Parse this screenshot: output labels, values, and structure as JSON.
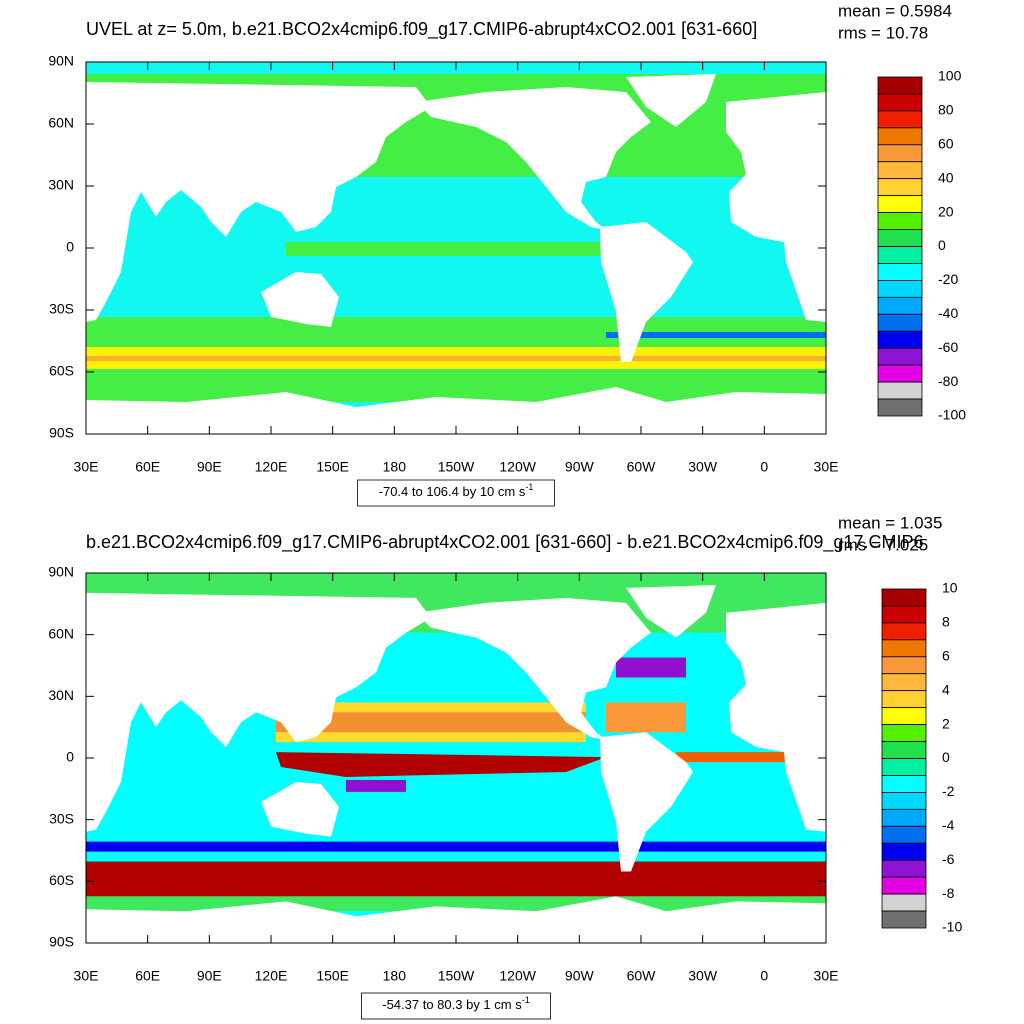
{
  "panels": [
    {
      "title": "UVEL at z=   5.0m, b.e21.BCO2x4cmip6.f09_g17.CMIP6-abrupt4xCO2.001 [631-660]",
      "stats": [
        "mean = 0.5984",
        "rms = 10.78"
      ],
      "lat_labels": [
        "90N",
        "60N",
        "30N",
        "0",
        "30S",
        "60S",
        "90S"
      ],
      "lon_labels": [
        "30E",
        "60E",
        "90E",
        "120E",
        "150E",
        "180",
        "150W",
        "120W",
        "90W",
        "60W",
        "30W",
        "0",
        "30E"
      ],
      "colorbar": {
        "labels": [
          "100",
          "80",
          "60",
          "40",
          "20",
          "0",
          "-20",
          "-40",
          "-60",
          "-80",
          "-100"
        ],
        "colors": [
          "#a80000",
          "#c80000",
          "#f01e00",
          "#f07800",
          "#f89838",
          "#fcb838",
          "#ffd030",
          "#ffff00",
          "#55f000",
          "#20e050",
          "#00f0a0",
          "#00ffff",
          "#00d8ff",
          "#00a8ff",
          "#0070f0",
          "#0000f0",
          "#8c14d2",
          "#e600e6",
          "#d2d2d2",
          "#707070"
        ]
      },
      "info": {
        "text": "-70.4 to 106.4 by 10 cm s",
        "superscript": "-1"
      }
    },
    {
      "title": "b.e21.BCO2x4cmip6.f09_g17.CMIP6-abrupt4xCO2.001 [631-660] - b.e21.BCO2x4cmip6.f09_g17.CMIP6",
      "stats": [
        "mean = 1.035",
        "rms = 7.025"
      ],
      "lat_labels": [
        "90N",
        "60N",
        "30N",
        "0",
        "30S",
        "60S",
        "90S"
      ],
      "lon_labels": [
        "30E",
        "60E",
        "90E",
        "120E",
        "150E",
        "180",
        "150W",
        "120W",
        "90W",
        "60W",
        "30W",
        "0",
        "30E"
      ],
      "colorbar": {
        "labels": [
          "10",
          "8",
          "6",
          "4",
          "2",
          "0",
          "-2",
          "-4",
          "-6",
          "-8",
          "-10"
        ],
        "colors": [
          "#a80000",
          "#c80000",
          "#f01e00",
          "#f07800",
          "#f89838",
          "#fcb838",
          "#ffd030",
          "#ffff00",
          "#55f000",
          "#20e050",
          "#00f0a0",
          "#00ffff",
          "#00d8ff",
          "#00a8ff",
          "#0070f0",
          "#0000f0",
          "#8c14d2",
          "#e600e6",
          "#d2d2d2",
          "#707070"
        ]
      },
      "info": {
        "text": "-54.37 to 80.3 by 1 cm s",
        "superscript": "-1"
      }
    }
  ]
}
